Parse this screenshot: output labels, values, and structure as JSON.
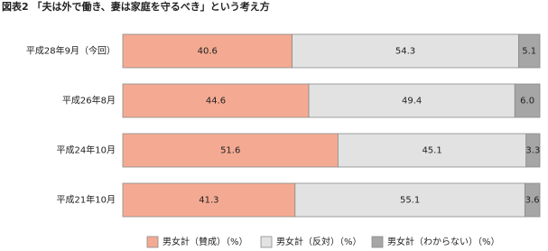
{
  "chart_data": {
    "type": "stacked-bar-100",
    "title": "図表2 「夫は外で働き、妻は家庭を守るべき」という考え方",
    "categories": [
      "平成28年9月（今回）",
      "平成26年8月",
      "平成24年10月",
      "平成21年10月"
    ],
    "series": [
      {
        "name": "男女計（賛成）（%）",
        "color": "#f4aa92",
        "values": [
          40.6,
          44.6,
          51.6,
          41.3
        ]
      },
      {
        "name": "男女計（反対）（%）",
        "color": "#e2e2e2",
        "values": [
          54.3,
          49.4,
          45.1,
          55.1
        ]
      },
      {
        "name": "男女計（わからない）（%）",
        "color": "#a6a6a6",
        "values": [
          5.1,
          6,
          3.3,
          3.6
        ],
        "value_labels": [
          "5.1",
          "6.0",
          "3.3",
          "3.6"
        ]
      }
    ],
    "legend": "bottom"
  }
}
